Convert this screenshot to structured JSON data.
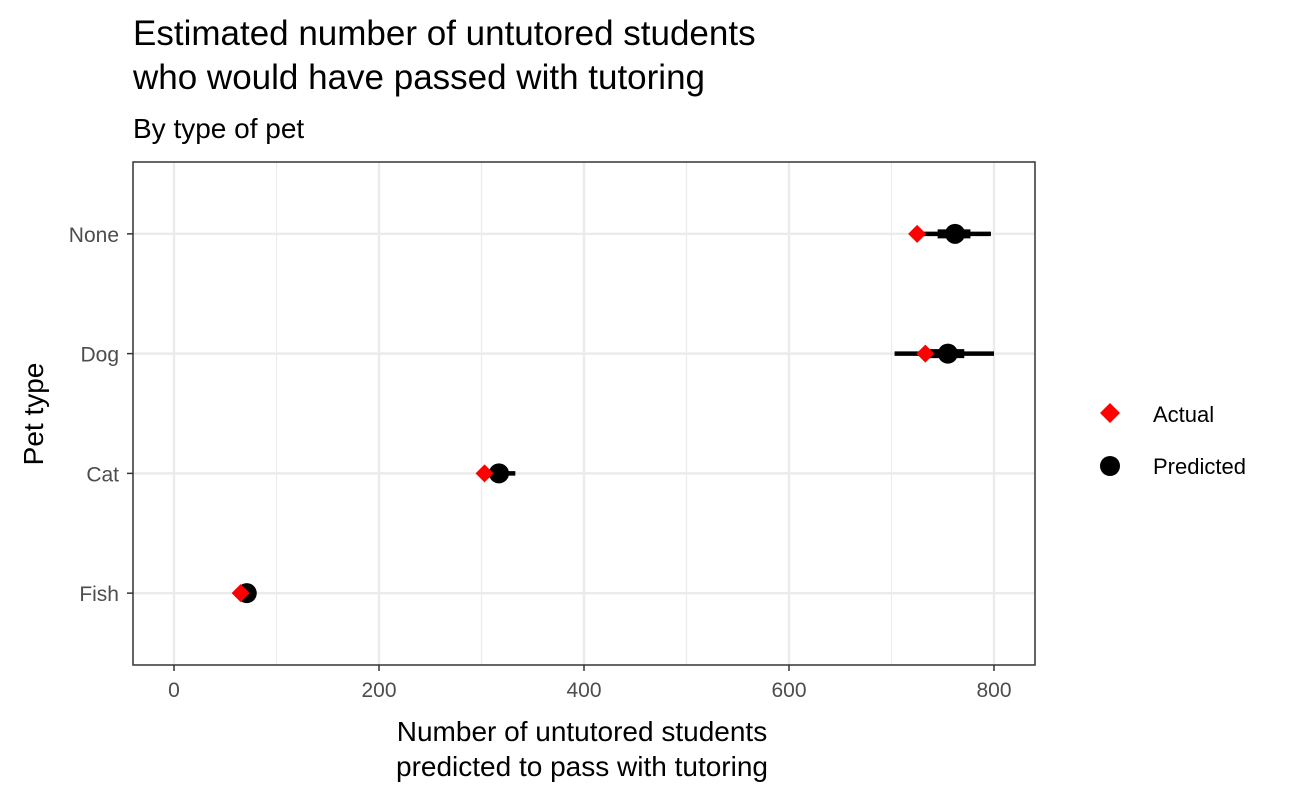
{
  "chart_data": {
    "type": "dot-interval",
    "title": [
      "Estimated number of untutored students",
      "who would have passed with tutoring"
    ],
    "subtitle": "By type of pet",
    "xlabel": [
      "Number of untutored students",
      "predicted to pass with tutoring"
    ],
    "ylabel": "Pet type",
    "xlim": [
      -40,
      840
    ],
    "xticks": [
      0,
      200,
      400,
      600,
      800
    ],
    "categories": [
      "Fish",
      "Cat",
      "Dog",
      "None"
    ],
    "grid": true,
    "legend_position": "right",
    "series": [
      {
        "name": "Actual",
        "shape": "diamond",
        "color": "#ff0000",
        "values": [
          65,
          303,
          733,
          725
        ]
      },
      {
        "name": "Predicted",
        "shape": "circle",
        "color": "#000000",
        "values": [
          71,
          317,
          755,
          762
        ],
        "interval_outer": [
          [
            62,
            79
          ],
          [
            300,
            333
          ],
          [
            703,
            800
          ],
          [
            723,
            797
          ]
        ],
        "interval_inner": [
          [
            66,
            76
          ],
          [
            308,
            326
          ],
          [
            730,
            771
          ],
          [
            745,
            777
          ]
        ]
      }
    ],
    "legend": [
      "Actual",
      "Predicted"
    ]
  }
}
